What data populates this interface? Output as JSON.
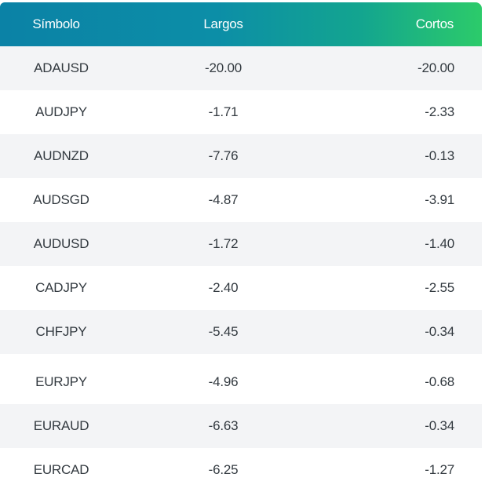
{
  "table": {
    "headers": {
      "symbol": "Símbolo",
      "long": "Largos",
      "short": "Cortos"
    },
    "rows": [
      {
        "symbol": "ADAUSD",
        "long": "-20.00",
        "short": "-20.00"
      },
      {
        "symbol": "AUDJPY",
        "long": "-1.71",
        "short": "-2.33"
      },
      {
        "symbol": "AUDNZD",
        "long": "-7.76",
        "short": "-0.13"
      },
      {
        "symbol": "AUDSGD",
        "long": "-4.87",
        "short": "-3.91"
      },
      {
        "symbol": "AUDUSD",
        "long": "-1.72",
        "short": "-1.40"
      },
      {
        "symbol": "CADJPY",
        "long": "-2.40",
        "short": "-2.55"
      },
      {
        "symbol": "CHFJPY",
        "long": "-5.45",
        "short": "-0.34"
      },
      {
        "symbol": "EURJPY",
        "long": "-4.96",
        "short": "-0.68"
      },
      {
        "symbol": "EURAUD",
        "long": "-6.63",
        "short": "-0.34"
      },
      {
        "symbol": "EURCAD",
        "long": "-6.25",
        "short": "-1.27"
      }
    ]
  },
  "colors": {
    "header_gradient_start": "#0b82a6",
    "header_gradient_end": "#2ccb6a",
    "row_alt_bg": "#f3f4f6",
    "text": "#333a40"
  }
}
